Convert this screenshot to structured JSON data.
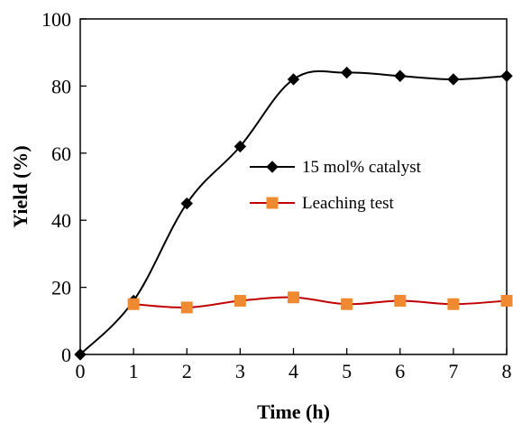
{
  "chart_data": {
    "type": "line",
    "title": "",
    "xlabel": "Time (h)",
    "ylabel": "Yield (%)",
    "xlim": [
      0,
      8
    ],
    "ylim": [
      0,
      100
    ],
    "xticks": [
      0,
      1,
      2,
      3,
      4,
      5,
      6,
      7,
      8
    ],
    "yticks": [
      0,
      20,
      40,
      60,
      80,
      100
    ],
    "grid": false,
    "legend_position": "center-right",
    "series": [
      {
        "name": "15 mol% catalyst",
        "marker": "diamond",
        "line_color": "#000000",
        "marker_color": "#000000",
        "x": [
          0,
          1,
          2,
          3,
          4,
          5,
          6,
          7,
          8
        ],
        "y": [
          0,
          16,
          45,
          62,
          82,
          84,
          83,
          82,
          83
        ]
      },
      {
        "name": "Leaching test",
        "marker": "square",
        "line_color": "#c00000",
        "marker_color": "#f08a30",
        "x": [
          1,
          2,
          3,
          4,
          5,
          6,
          7,
          8
        ],
        "y": [
          15,
          14,
          16,
          17,
          15,
          16,
          15,
          16
        ]
      }
    ]
  }
}
